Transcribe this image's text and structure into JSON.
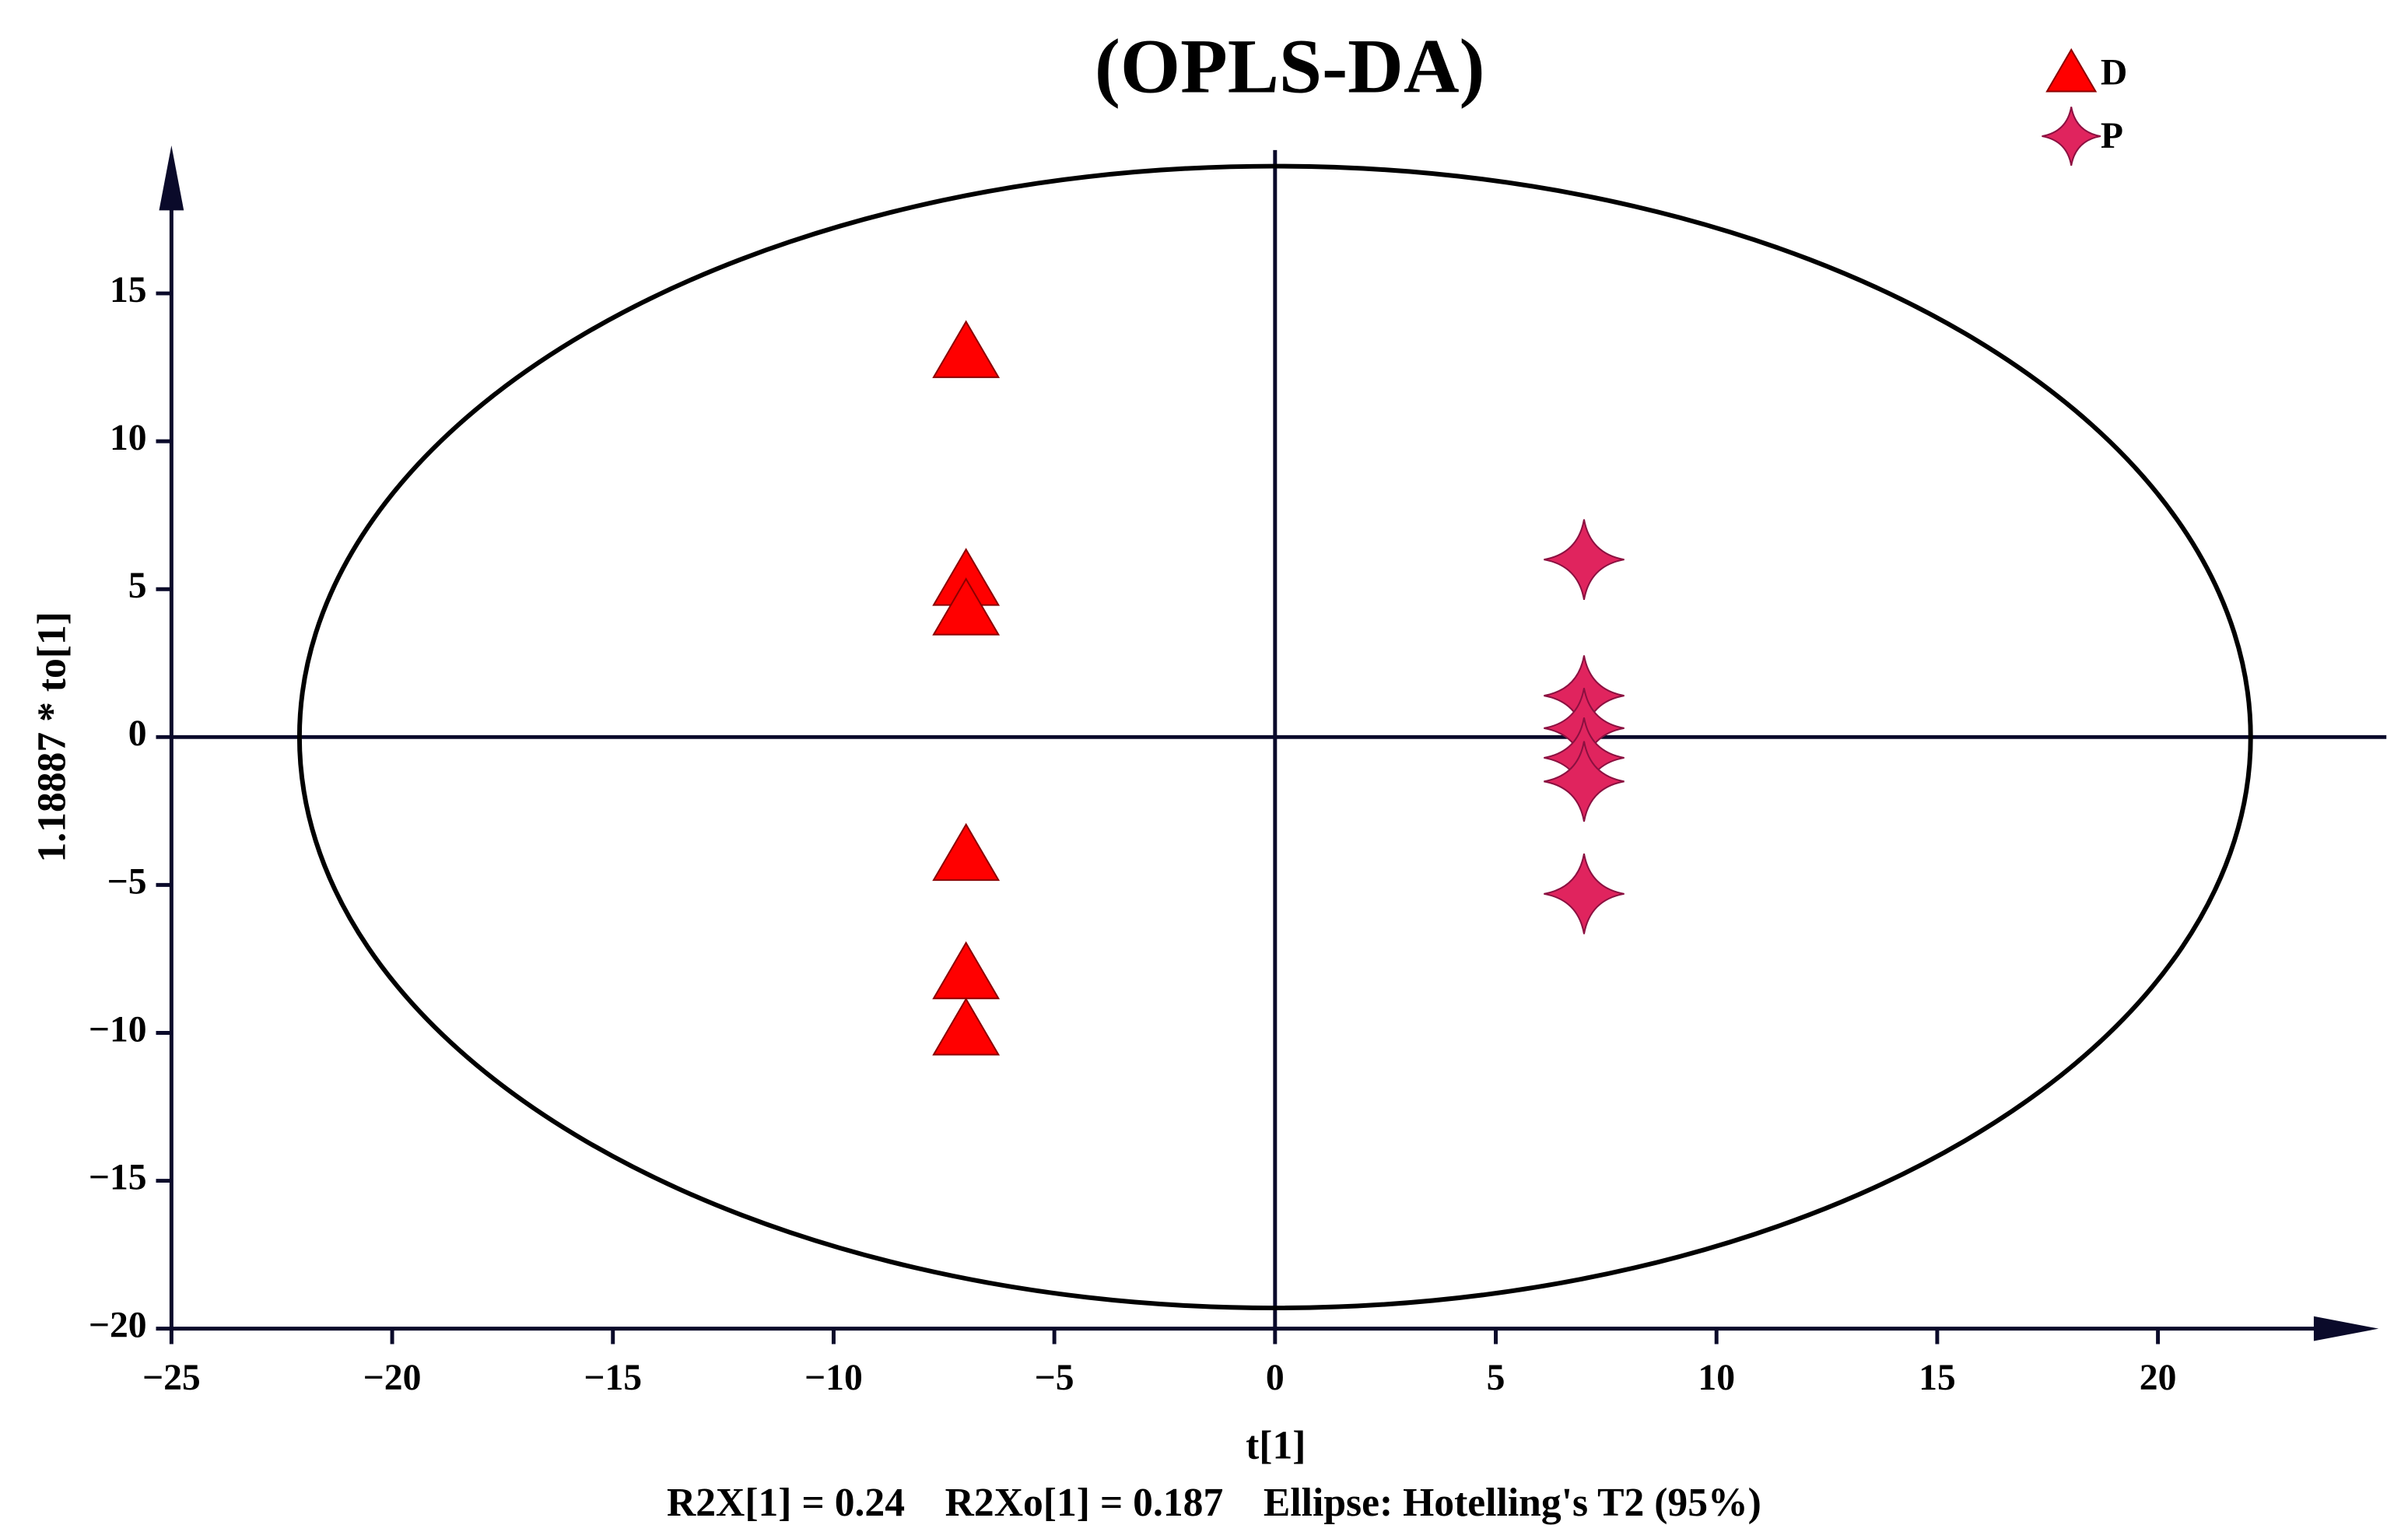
{
  "chart_data": {
    "type": "scatter",
    "title": "(OPLS-DA)",
    "x_label": "t[1]",
    "y_label": "1.18887 * to[1]",
    "annotation": "R2X[1] = 0.24    R2Xo[1] = 0.187    Ellipse: Hotelling's T2 (95%)",
    "xlim": [
      -25,
      25
    ],
    "ylim": [
      -20,
      20
    ],
    "xticks": [
      {
        "value": -25,
        "label": "−25"
      },
      {
        "value": -20,
        "label": "−20"
      },
      {
        "value": -15,
        "label": "−15"
      },
      {
        "value": -10,
        "label": "−10"
      },
      {
        "value": -5,
        "label": "−5"
      },
      0,
      5,
      10,
      15,
      20
    ],
    "yticks": [
      {
        "value": -20,
        "label": "−20"
      },
      {
        "value": -15,
        "label": "−15"
      },
      {
        "value": -10,
        "label": "−10"
      },
      {
        "value": -5,
        "label": "−5"
      },
      0,
      5,
      10,
      15
    ],
    "ellipse_radii": [
      22.1,
      19.3
    ],
    "legend_position": "upper right",
    "series": [
      {
        "name": "D",
        "marker": "triangle",
        "color": "#ff0000",
        "x": [
          -7,
          -7,
          -7,
          -7,
          -7,
          -7
        ],
        "values": [
          13.0,
          5.3,
          4.3,
          -4.0,
          -8.0,
          -9.9
        ]
      },
      {
        "name": "P",
        "marker": "star",
        "color": "#e0245e",
        "x": [
          7,
          7,
          7,
          7,
          7,
          7
        ],
        "values": [
          6.0,
          1.4,
          0.3,
          -0.7,
          -1.5,
          -5.3
        ]
      }
    ]
  }
}
